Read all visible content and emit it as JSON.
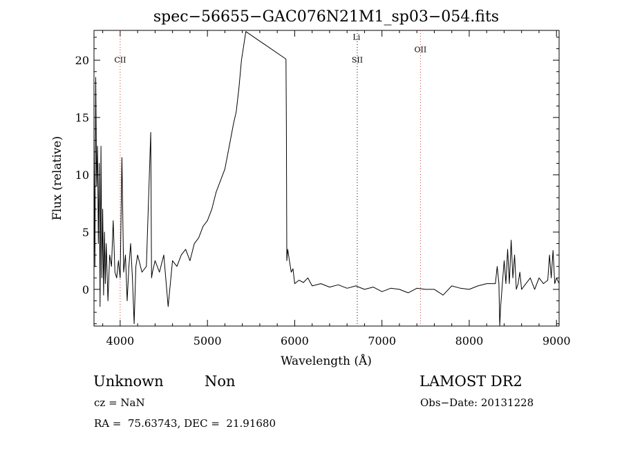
{
  "chart_data": {
    "type": "line",
    "title": "spec−56655−GAC076N21M1_sp03−054.fits",
    "xlabel": "Wavelength (Å)",
    "ylabel": "Flux (relative)",
    "xlim": [
      3700,
      9030
    ],
    "ylim": [
      -3.2,
      22.6
    ],
    "xticks": [
      4000,
      5000,
      6000,
      7000,
      8000,
      9000
    ],
    "yticks": [
      0,
      5,
      10,
      15,
      20
    ],
    "grid": false,
    "lines": [
      {
        "label": "CII",
        "x": 4000,
        "label_y": 19.8
      },
      {
        "label": "Li",
        "x": 6708,
        "label_y": 21.8
      },
      {
        "label": "SII",
        "x": 6717,
        "label_y": 19.8
      },
      {
        "label": "OII",
        "x": 7441,
        "label_y": 20.7
      }
    ],
    "series": [
      {
        "x": [
          3700,
          3710,
          3720,
          3730,
          3740,
          3750,
          3760,
          3770,
          3780,
          3790,
          3800,
          3810,
          3820,
          3830,
          3840,
          3860,
          3880,
          3900,
          3920,
          3940,
          3960,
          3980,
          4000,
          4020,
          4040,
          4060,
          4080,
          4100,
          4120,
          4140,
          4160,
          4180,
          4200,
          4250,
          4300,
          4350,
          4360,
          4370,
          4400,
          4450,
          4500,
          4550,
          4600,
          4650,
          4700,
          4750,
          4800,
          4850,
          4900,
          4950,
          5000,
          5050,
          5100,
          5150,
          5200,
          5250,
          5300,
          5330,
          5360,
          5390,
          5420,
          5440,
          5900,
          5905,
          5910,
          5920,
          5940,
          5960,
          5980,
          6000,
          6050,
          6100,
          6150,
          6200,
          6300,
          6400,
          6500,
          6600,
          6700,
          6800,
          6900,
          7000,
          7100,
          7200,
          7300,
          7400,
          7500,
          7600,
          7700,
          7800,
          7900,
          8000,
          8100,
          8200,
          8300,
          8320,
          8340,
          8350,
          8360,
          8380,
          8400,
          8420,
          8440,
          8460,
          8480,
          8500,
          8520,
          8540,
          8560,
          8580,
          8600,
          8650,
          8700,
          8750,
          8800,
          8850,
          8900,
          8920,
          8940,
          8960,
          8980,
          9000,
          9030
        ],
        "y": [
          13.0,
          2.0,
          18.5,
          9.0,
          12.5,
          4.0,
          11.0,
          -1.5,
          12.5,
          1.0,
          7.0,
          -0.5,
          5.0,
          0.5,
          4.0,
          -1.0,
          3.0,
          2.0,
          6.0,
          1.5,
          1.0,
          2.5,
          1.0,
          11.5,
          1.5,
          3.0,
          -1.0,
          2.0,
          4.0,
          1.0,
          -3.0,
          2.0,
          3.0,
          1.5,
          2.0,
          13.7,
          1.0,
          1.5,
          2.5,
          1.5,
          3.0,
          -1.5,
          2.5,
          2.0,
          3.0,
          3.5,
          2.5,
          4.0,
          4.5,
          5.5,
          6.0,
          7.0,
          8.5,
          9.5,
          10.5,
          12.5,
          14.5,
          15.5,
          17.5,
          20.0,
          21.5,
          22.5,
          20.1,
          14.0,
          2.5,
          3.5,
          2.5,
          1.5,
          1.8,
          0.5,
          0.8,
          0.6,
          1.0,
          0.3,
          0.5,
          0.2,
          0.4,
          0.1,
          0.3,
          0.0,
          0.2,
          -0.2,
          0.1,
          0.0,
          -0.3,
          0.1,
          0.0,
          0.0,
          -0.5,
          0.3,
          0.1,
          0.0,
          0.3,
          0.5,
          0.5,
          2.0,
          0.5,
          -3.2,
          -1.5,
          0.5,
          2.5,
          0.5,
          3.5,
          0.5,
          4.3,
          1.0,
          3.0,
          0.0,
          0.5,
          1.5,
          0.0,
          0.5,
          1.0,
          0.0,
          1.0,
          0.5,
          0.8,
          3.0,
          1.0,
          3.4,
          0.5,
          1.0,
          0.5
        ]
      }
    ]
  },
  "info": {
    "object_class": "Unknown",
    "object_subclass": "Non",
    "survey": "LAMOST DR2",
    "redshift": "cz = NaN",
    "obs_date": "Obs−Date: 20131228",
    "coords": "RA =  75.63743, DEC =  21.91680"
  }
}
